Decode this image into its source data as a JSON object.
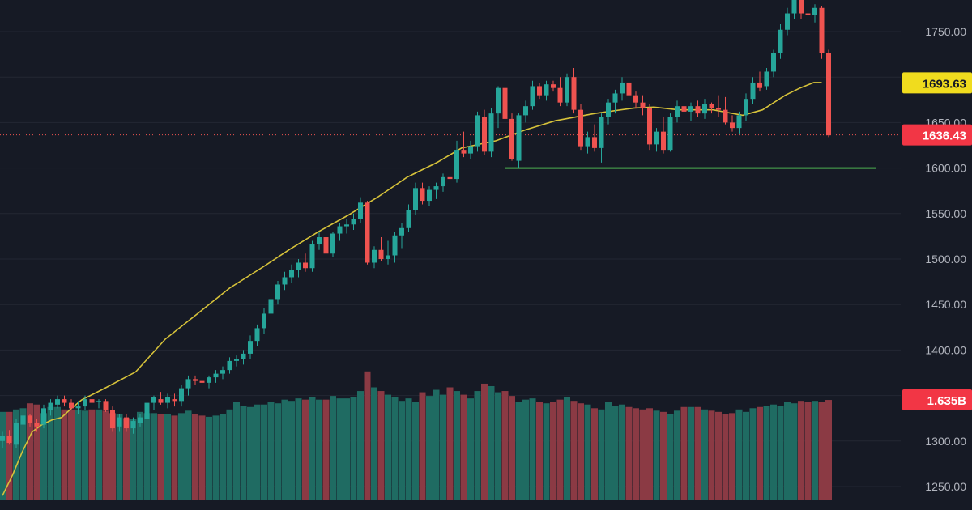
{
  "colors": {
    "background": "#161a25",
    "grid": "#232733",
    "up": "#26a69a",
    "down": "#ef5350",
    "vol_up": "#1f6b62",
    "vol_down": "#8b3a44",
    "ma": "#d6c23a",
    "support": "#4caf50",
    "axis_text": "#b2b5be",
    "ma_label_bg": "#f0dc1e",
    "price_label_bg": "#f23645"
  },
  "chart_data": {
    "type": "candlestick",
    "title": "",
    "ylim": [
      1225,
      1790
    ],
    "y_ticks": [
      {
        "value": 1250,
        "label": "1250.00"
      },
      {
        "value": 1300,
        "label": "1300.00"
      },
      {
        "value": 1350,
        "label": "1350.00"
      },
      {
        "value": 1400,
        "label": "1400.00"
      },
      {
        "value": 1450,
        "label": "1450.00"
      },
      {
        "value": 1500,
        "label": "1500.00"
      },
      {
        "value": 1550,
        "label": "1550.00"
      },
      {
        "value": 1600,
        "label": "1600.00"
      },
      {
        "value": 1650,
        "label": "1650.00"
      },
      {
        "value": 1700,
        "label": "1700.00"
      },
      {
        "value": 1750,
        "label": "1750.00"
      }
    ],
    "ohlc_series": [
      [
        1300,
        1310,
        1292,
        1306
      ],
      [
        1306,
        1312,
        1296,
        1298
      ],
      [
        1296,
        1324,
        1292,
        1320
      ],
      [
        1318,
        1332,
        1312,
        1328
      ],
      [
        1328,
        1330,
        1316,
        1320
      ],
      [
        1320,
        1324,
        1310,
        1316
      ],
      [
        1318,
        1340,
        1314,
        1336
      ],
      [
        1334,
        1346,
        1328,
        1342
      ],
      [
        1340,
        1350,
        1336,
        1346
      ],
      [
        1346,
        1350,
        1338,
        1342
      ],
      [
        1342,
        1346,
        1334,
        1336
      ],
      [
        1336,
        1344,
        1330,
        1338
      ],
      [
        1338,
        1350,
        1334,
        1346
      ],
      [
        1346,
        1352,
        1340,
        1342
      ],
      [
        1344,
        1346,
        1336,
        1344
      ],
      [
        1344,
        1346,
        1332,
        1334
      ],
      [
        1334,
        1338,
        1310,
        1314
      ],
      [
        1316,
        1330,
        1310,
        1326
      ],
      [
        1326,
        1330,
        1310,
        1314
      ],
      [
        1314,
        1326,
        1308,
        1322
      ],
      [
        1320,
        1330,
        1316,
        1326
      ],
      [
        1324,
        1346,
        1318,
        1342
      ],
      [
        1342,
        1350,
        1334,
        1348
      ],
      [
        1346,
        1354,
        1340,
        1342
      ],
      [
        1342,
        1352,
        1336,
        1348
      ],
      [
        1346,
        1352,
        1338,
        1344
      ],
      [
        1344,
        1362,
        1338,
        1358
      ],
      [
        1358,
        1372,
        1350,
        1368
      ],
      [
        1368,
        1372,
        1362,
        1366
      ],
      [
        1366,
        1370,
        1360,
        1364
      ],
      [
        1364,
        1372,
        1358,
        1370
      ],
      [
        1370,
        1378,
        1364,
        1374
      ],
      [
        1374,
        1382,
        1368,
        1378
      ],
      [
        1378,
        1392,
        1374,
        1388
      ],
      [
        1388,
        1394,
        1382,
        1390
      ],
      [
        1390,
        1400,
        1384,
        1396
      ],
      [
        1396,
        1416,
        1390,
        1410
      ],
      [
        1410,
        1428,
        1404,
        1424
      ],
      [
        1424,
        1446,
        1418,
        1440
      ],
      [
        1440,
        1462,
        1434,
        1456
      ],
      [
        1456,
        1476,
        1450,
        1472
      ],
      [
        1472,
        1486,
        1466,
        1480
      ],
      [
        1480,
        1494,
        1474,
        1488
      ],
      [
        1488,
        1500,
        1480,
        1496
      ],
      [
        1496,
        1506,
        1486,
        1490
      ],
      [
        1490,
        1520,
        1486,
        1516
      ],
      [
        1516,
        1530,
        1510,
        1524
      ],
      [
        1524,
        1530,
        1500,
        1506
      ],
      [
        1506,
        1530,
        1502,
        1528
      ],
      [
        1528,
        1540,
        1520,
        1536
      ],
      [
        1536,
        1544,
        1528,
        1538
      ],
      [
        1538,
        1550,
        1532,
        1544
      ],
      [
        1544,
        1568,
        1540,
        1562
      ],
      [
        1562,
        1564,
        1494,
        1496
      ],
      [
        1496,
        1514,
        1490,
        1510
      ],
      [
        1510,
        1524,
        1498,
        1500
      ],
      [
        1500,
        1520,
        1494,
        1504
      ],
      [
        1504,
        1530,
        1496,
        1526
      ],
      [
        1526,
        1540,
        1512,
        1534
      ],
      [
        1534,
        1560,
        1530,
        1554
      ],
      [
        1554,
        1584,
        1548,
        1578
      ],
      [
        1578,
        1584,
        1560,
        1564
      ],
      [
        1564,
        1580,
        1558,
        1576
      ],
      [
        1576,
        1584,
        1566,
        1580
      ],
      [
        1580,
        1594,
        1574,
        1590
      ],
      [
        1590,
        1596,
        1576,
        1588
      ],
      [
        1588,
        1630,
        1584,
        1620
      ],
      [
        1620,
        1640,
        1612,
        1616
      ],
      [
        1616,
        1630,
        1610,
        1624
      ],
      [
        1624,
        1662,
        1618,
        1658
      ],
      [
        1656,
        1664,
        1614,
        1618
      ],
      [
        1618,
        1666,
        1612,
        1660
      ],
      [
        1660,
        1690,
        1644,
        1688
      ],
      [
        1688,
        1692,
        1650,
        1654
      ],
      [
        1654,
        1660,
        1608,
        1610
      ],
      [
        1608,
        1660,
        1600,
        1658
      ],
      [
        1658,
        1674,
        1650,
        1668
      ],
      [
        1668,
        1696,
        1664,
        1690
      ],
      [
        1690,
        1694,
        1676,
        1680
      ],
      [
        1680,
        1696,
        1674,
        1692
      ],
      [
        1692,
        1696,
        1684,
        1688
      ],
      [
        1688,
        1700,
        1668,
        1672
      ],
      [
        1672,
        1704,
        1668,
        1700
      ],
      [
        1700,
        1710,
        1660,
        1664
      ],
      [
        1664,
        1670,
        1620,
        1624
      ],
      [
        1624,
        1640,
        1616,
        1634
      ],
      [
        1634,
        1648,
        1618,
        1622
      ],
      [
        1622,
        1660,
        1606,
        1656
      ],
      [
        1656,
        1676,
        1648,
        1672
      ],
      [
        1672,
        1686,
        1660,
        1682
      ],
      [
        1682,
        1700,
        1674,
        1694
      ],
      [
        1694,
        1700,
        1676,
        1680
      ],
      [
        1680,
        1684,
        1666,
        1672
      ],
      [
        1672,
        1680,
        1658,
        1666
      ],
      [
        1666,
        1670,
        1620,
        1626
      ],
      [
        1626,
        1644,
        1618,
        1640
      ],
      [
        1640,
        1656,
        1616,
        1620
      ],
      [
        1620,
        1660,
        1618,
        1656
      ],
      [
        1656,
        1674,
        1650,
        1668
      ],
      [
        1668,
        1674,
        1658,
        1662
      ],
      [
        1662,
        1672,
        1652,
        1668
      ],
      [
        1668,
        1674,
        1656,
        1660
      ],
      [
        1660,
        1676,
        1654,
        1670
      ],
      [
        1670,
        1672,
        1660,
        1666
      ],
      [
        1666,
        1680,
        1656,
        1664
      ],
      [
        1664,
        1678,
        1648,
        1650
      ],
      [
        1650,
        1658,
        1640,
        1644
      ],
      [
        1644,
        1662,
        1638,
        1658
      ],
      [
        1658,
        1682,
        1652,
        1676
      ],
      [
        1676,
        1700,
        1670,
        1694
      ],
      [
        1694,
        1706,
        1684,
        1688
      ],
      [
        1690,
        1710,
        1686,
        1706
      ],
      [
        1706,
        1730,
        1700,
        1726
      ],
      [
        1726,
        1758,
        1720,
        1752
      ],
      [
        1752,
        1776,
        1746,
        1770
      ],
      [
        1770,
        1794,
        1764,
        1788
      ],
      [
        1788,
        1790,
        1764,
        1770
      ],
      [
        1770,
        1780,
        1762,
        1768
      ],
      [
        1768,
        1780,
        1760,
        1776
      ],
      [
        1776,
        1778,
        1720,
        1726
      ],
      [
        1726,
        1730,
        1634,
        1636
      ]
    ],
    "volume_series": [
      1.44,
      1.44,
      1.48,
      1.5,
      1.58,
      1.56,
      1.42,
      1.52,
      1.52,
      1.48,
      1.48,
      1.48,
      1.46,
      1.48,
      1.48,
      1.46,
      1.42,
      1.4,
      1.34,
      1.32,
      1.44,
      1.42,
      1.42,
      1.4,
      1.4,
      1.38,
      1.42,
      1.46,
      1.4,
      1.38,
      1.36,
      1.38,
      1.4,
      1.48,
      1.6,
      1.54,
      1.52,
      1.56,
      1.56,
      1.6,
      1.58,
      1.64,
      1.62,
      1.66,
      1.64,
      1.68,
      1.64,
      1.64,
      1.7,
      1.66,
      1.66,
      1.68,
      1.78,
      2.1,
      1.84,
      1.78,
      1.72,
      1.68,
      1.62,
      1.66,
      1.6,
      1.76,
      1.7,
      1.8,
      1.72,
      1.84,
      1.78,
      1.72,
      1.66,
      1.78,
      1.9,
      1.86,
      1.76,
      1.78,
      1.7,
      1.6,
      1.64,
      1.66,
      1.6,
      1.58,
      1.6,
      1.64,
      1.68,
      1.62,
      1.58,
      1.56,
      1.5,
      1.48,
      1.6,
      1.54,
      1.56,
      1.52,
      1.5,
      1.48,
      1.5,
      1.46,
      1.44,
      1.4,
      1.46,
      1.52,
      1.52,
      1.52,
      1.48,
      1.46,
      1.44,
      1.4,
      1.42,
      1.48,
      1.44,
      1.5,
      1.52,
      1.54,
      1.56,
      1.54,
      1.6,
      1.58,
      1.62,
      1.6,
      1.62,
      1.6,
      1.635
    ],
    "volume_max_display": 2.15,
    "moving_average": [
      [
        0,
        1240
      ],
      [
        10,
        1262
      ],
      [
        20,
        1288
      ],
      [
        30,
        1310
      ],
      [
        40,
        1318
      ],
      [
        50,
        1323
      ],
      [
        60,
        1326
      ],
      [
        70,
        1336
      ],
      [
        80,
        1345
      ],
      [
        100,
        1356
      ],
      [
        135,
        1376
      ],
      [
        165,
        1412
      ],
      [
        200,
        1442
      ],
      [
        230,
        1468
      ],
      [
        265,
        1492
      ],
      [
        290,
        1510
      ],
      [
        320,
        1530
      ],
      [
        350,
        1548
      ],
      [
        380,
        1568
      ],
      [
        410,
        1590
      ],
      [
        440,
        1606
      ],
      [
        465,
        1622
      ],
      [
        500,
        1630
      ],
      [
        530,
        1642
      ],
      [
        560,
        1652
      ],
      [
        600,
        1660
      ],
      [
        640,
        1666
      ],
      [
        660,
        1667
      ],
      [
        685,
        1664
      ],
      [
        720,
        1664
      ],
      [
        750,
        1658
      ],
      [
        770,
        1664
      ],
      [
        793,
        1680
      ],
      [
        808,
        1688
      ],
      [
        822,
        1694
      ],
      [
        830,
        1694
      ]
    ],
    "ma_x_max": 830,
    "support_level": 1600,
    "support_start_index": 73,
    "last_price": {
      "value": 1636.43,
      "label": "1636.43"
    },
    "ma_value": {
      "value": 1693.63,
      "label": "1693.63"
    },
    "volume_label": {
      "value": 1.635,
      "label": "1.635B"
    }
  }
}
